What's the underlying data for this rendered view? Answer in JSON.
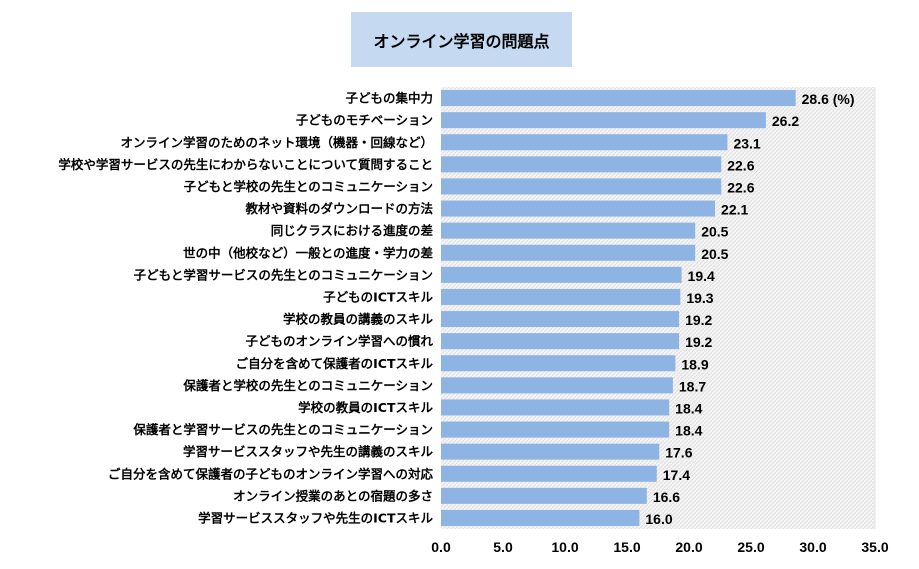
{
  "chart_data": {
    "type": "bar",
    "orientation": "horizontal",
    "title": "オンライン学習の問題点",
    "categories": [
      "子どもの集中力",
      "子どものモチベーション",
      "オンライン学習のためのネット環境（機器・回線など）",
      "学校や学習サービスの先生にわからないことについて質問すること",
      "子どもと学校の先生とのコミュニケーション",
      "教材や資料のダウンロードの方法",
      "同じクラスにおける進度の差",
      "世の中（他校など）一般との進度・学力の差",
      "子どもと学習サービスの先生とのコミュニケーション",
      "子どものICTスキル",
      "学校の教員の講義のスキル",
      "子どものオンライン学習への慣れ",
      "ご自分を含めて保護者のICTスキル",
      "保護者と学校の先生とのコミュニケーション",
      "学校の教員のICTスキル",
      "保護者と学習サービスの先生とのコミュニケーション",
      "学習サービススタッフや先生の講義のスキル",
      "ご自分を含めて保護者の子どものオンライン学習への対応",
      "オンライン授業のあとの宿題の多さ",
      "学習サービススタッフや先生のICTスキル"
    ],
    "values": [
      28.6,
      26.2,
      23.1,
      22.6,
      22.6,
      22.1,
      20.5,
      20.5,
      19.4,
      19.3,
      19.2,
      19.2,
      18.9,
      18.7,
      18.4,
      18.4,
      17.6,
      17.4,
      16.6,
      16.0
    ],
    "value_labels": [
      "28.6 (%)",
      "26.2",
      "23.1",
      "22.6",
      "22.6",
      "22.1",
      "20.5",
      "20.5",
      "19.4",
      "19.3",
      "19.2",
      "19.2",
      "18.9",
      "18.7",
      "18.4",
      "18.4",
      "17.6",
      "17.4",
      "16.6",
      "16.0"
    ],
    "xlim": [
      0,
      35
    ],
    "x_ticks": [
      "0.0",
      "5.0",
      "10.0",
      "15.0",
      "20.0",
      "25.0",
      "30.0",
      "35.0"
    ],
    "bar_color": "#8db4e2",
    "grid": false,
    "legend": false
  }
}
